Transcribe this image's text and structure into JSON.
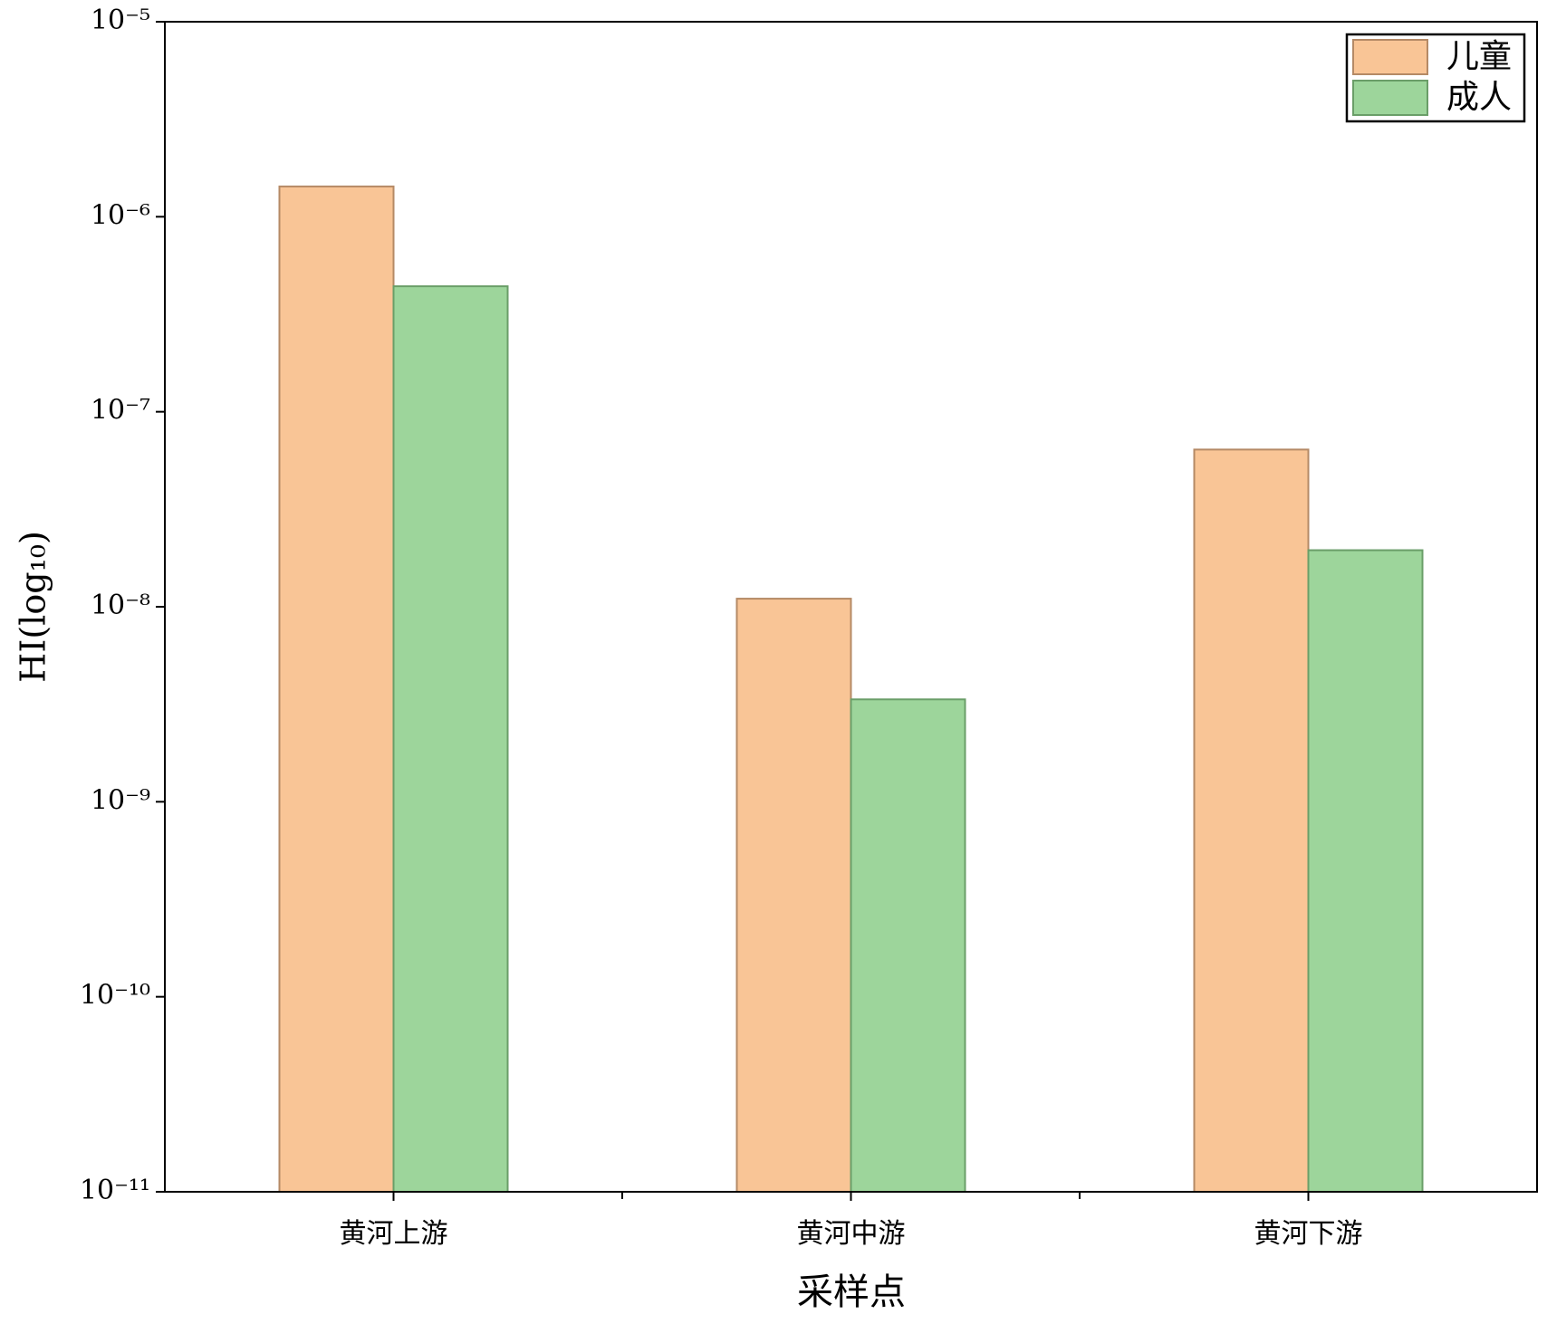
{
  "chart_data": {
    "type": "bar",
    "x_label": "采样点",
    "y_label": "HI(log₁₀)",
    "categories": [
      "黄河上游",
      "黄河中游",
      "黄河下游"
    ],
    "series": [
      {
        "name": "儿童",
        "color": "#f9c596",
        "stroke": "#b58a66",
        "values": [
          1.43e-06,
          1.1e-08,
          6.4e-08
        ]
      },
      {
        "name": "成人",
        "color": "#9dd59b",
        "stroke": "#6a9e68",
        "values": [
          4.4e-07,
          3.35e-09,
          1.95e-08
        ]
      }
    ],
    "log_y": true,
    "ylim": [
      1e-11,
      1e-05
    ],
    "yticks": [
      {
        "value": 1e-11,
        "label": "10⁻¹¹"
      },
      {
        "value": 1e-10,
        "label": "10⁻¹⁰"
      },
      {
        "value": 1e-09,
        "label": "10⁻⁹"
      },
      {
        "value": 1e-08,
        "label": "10⁻⁸"
      },
      {
        "value": 1e-07,
        "label": "10⁻⁷"
      },
      {
        "value": 1e-06,
        "label": "10⁻⁶"
      },
      {
        "value": 1e-05,
        "label": "10⁻⁵"
      }
    ],
    "grid": false,
    "legend": "top-right"
  }
}
